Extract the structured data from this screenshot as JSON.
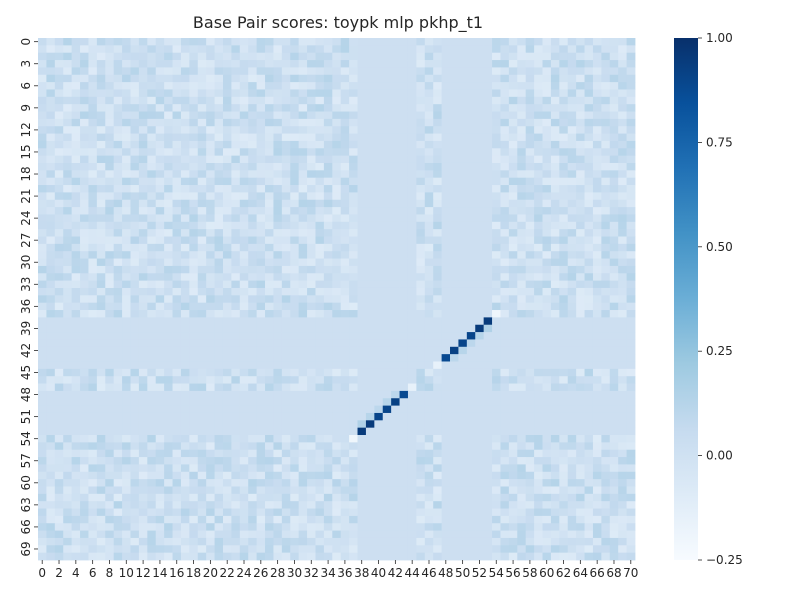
{
  "chart_data": {
    "type": "heatmap",
    "title": "Base Pair scores: toypk mlp pkhp_t1",
    "xlabel": "",
    "ylabel": "",
    "n_rows": 71,
    "n_cols": 71,
    "x_tick_labels": [
      "0",
      "2",
      "4",
      "6",
      "8",
      "10",
      "12",
      "14",
      "16",
      "18",
      "20",
      "22",
      "24",
      "26",
      "28",
      "30",
      "32",
      "34",
      "36",
      "38",
      "40",
      "42",
      "44",
      "46",
      "48",
      "50",
      "52",
      "54",
      "56",
      "58",
      "60",
      "62",
      "64",
      "66",
      "68",
      "70"
    ],
    "y_tick_labels": [
      "0",
      "3",
      "6",
      "9",
      "12",
      "15",
      "18",
      "21",
      "24",
      "27",
      "30",
      "33",
      "36",
      "39",
      "42",
      "45",
      "48",
      "51",
      "54",
      "57",
      "60",
      "63",
      "66",
      "69"
    ],
    "colormap": "Blues",
    "vmin": -0.25,
    "vmax": 1.0,
    "colorbar_tick_labels": [
      "1.00",
      "0.75",
      "0.50",
      "0.25",
      "0.00",
      "−0.25"
    ],
    "colorbar_ticks": [
      1.0,
      0.75,
      0.5,
      0.25,
      0.0,
      -0.25
    ],
    "background_value": 0.02,
    "unpaired_rows": [
      38,
      39,
      40,
      41,
      42,
      43,
      44,
      48,
      49,
      50,
      51,
      52,
      53
    ],
    "unpaired_cols": [
      38,
      39,
      40,
      41,
      42,
      43,
      44,
      48,
      49,
      50,
      51,
      52,
      53
    ],
    "unpaired_value": 0.02,
    "strong_pairs": [
      [
        38,
        53,
        0.95
      ],
      [
        39,
        52,
        0.95
      ],
      [
        40,
        51,
        0.9
      ],
      [
        41,
        50,
        0.9
      ],
      [
        42,
        49,
        0.92
      ],
      [
        43,
        48,
        0.88
      ],
      [
        53,
        38,
        0.95
      ],
      [
        52,
        39,
        0.95
      ],
      [
        51,
        40,
        0.9
      ],
      [
        50,
        41,
        0.9
      ],
      [
        49,
        42,
        0.92
      ],
      [
        48,
        43,
        0.88
      ]
    ],
    "weak_pairs": [
      [
        37,
        54,
        -0.2
      ],
      [
        44,
        47,
        -0.15
      ],
      [
        54,
        37,
        -0.2
      ],
      [
        47,
        44,
        -0.15
      ],
      [
        39,
        53,
        0.15
      ],
      [
        40,
        52,
        0.12
      ],
      [
        41,
        51,
        0.1
      ],
      [
        42,
        50,
        0.12
      ],
      [
        43,
        49,
        0.1
      ],
      [
        52,
        38,
        0.15
      ],
      [
        51,
        39,
        0.12
      ],
      [
        50,
        40,
        0.1
      ],
      [
        49,
        41,
        0.12
      ],
      [
        48,
        42,
        0.1
      ]
    ]
  },
  "colors": {
    "low": "#f7fbff",
    "high": "#08306b"
  }
}
